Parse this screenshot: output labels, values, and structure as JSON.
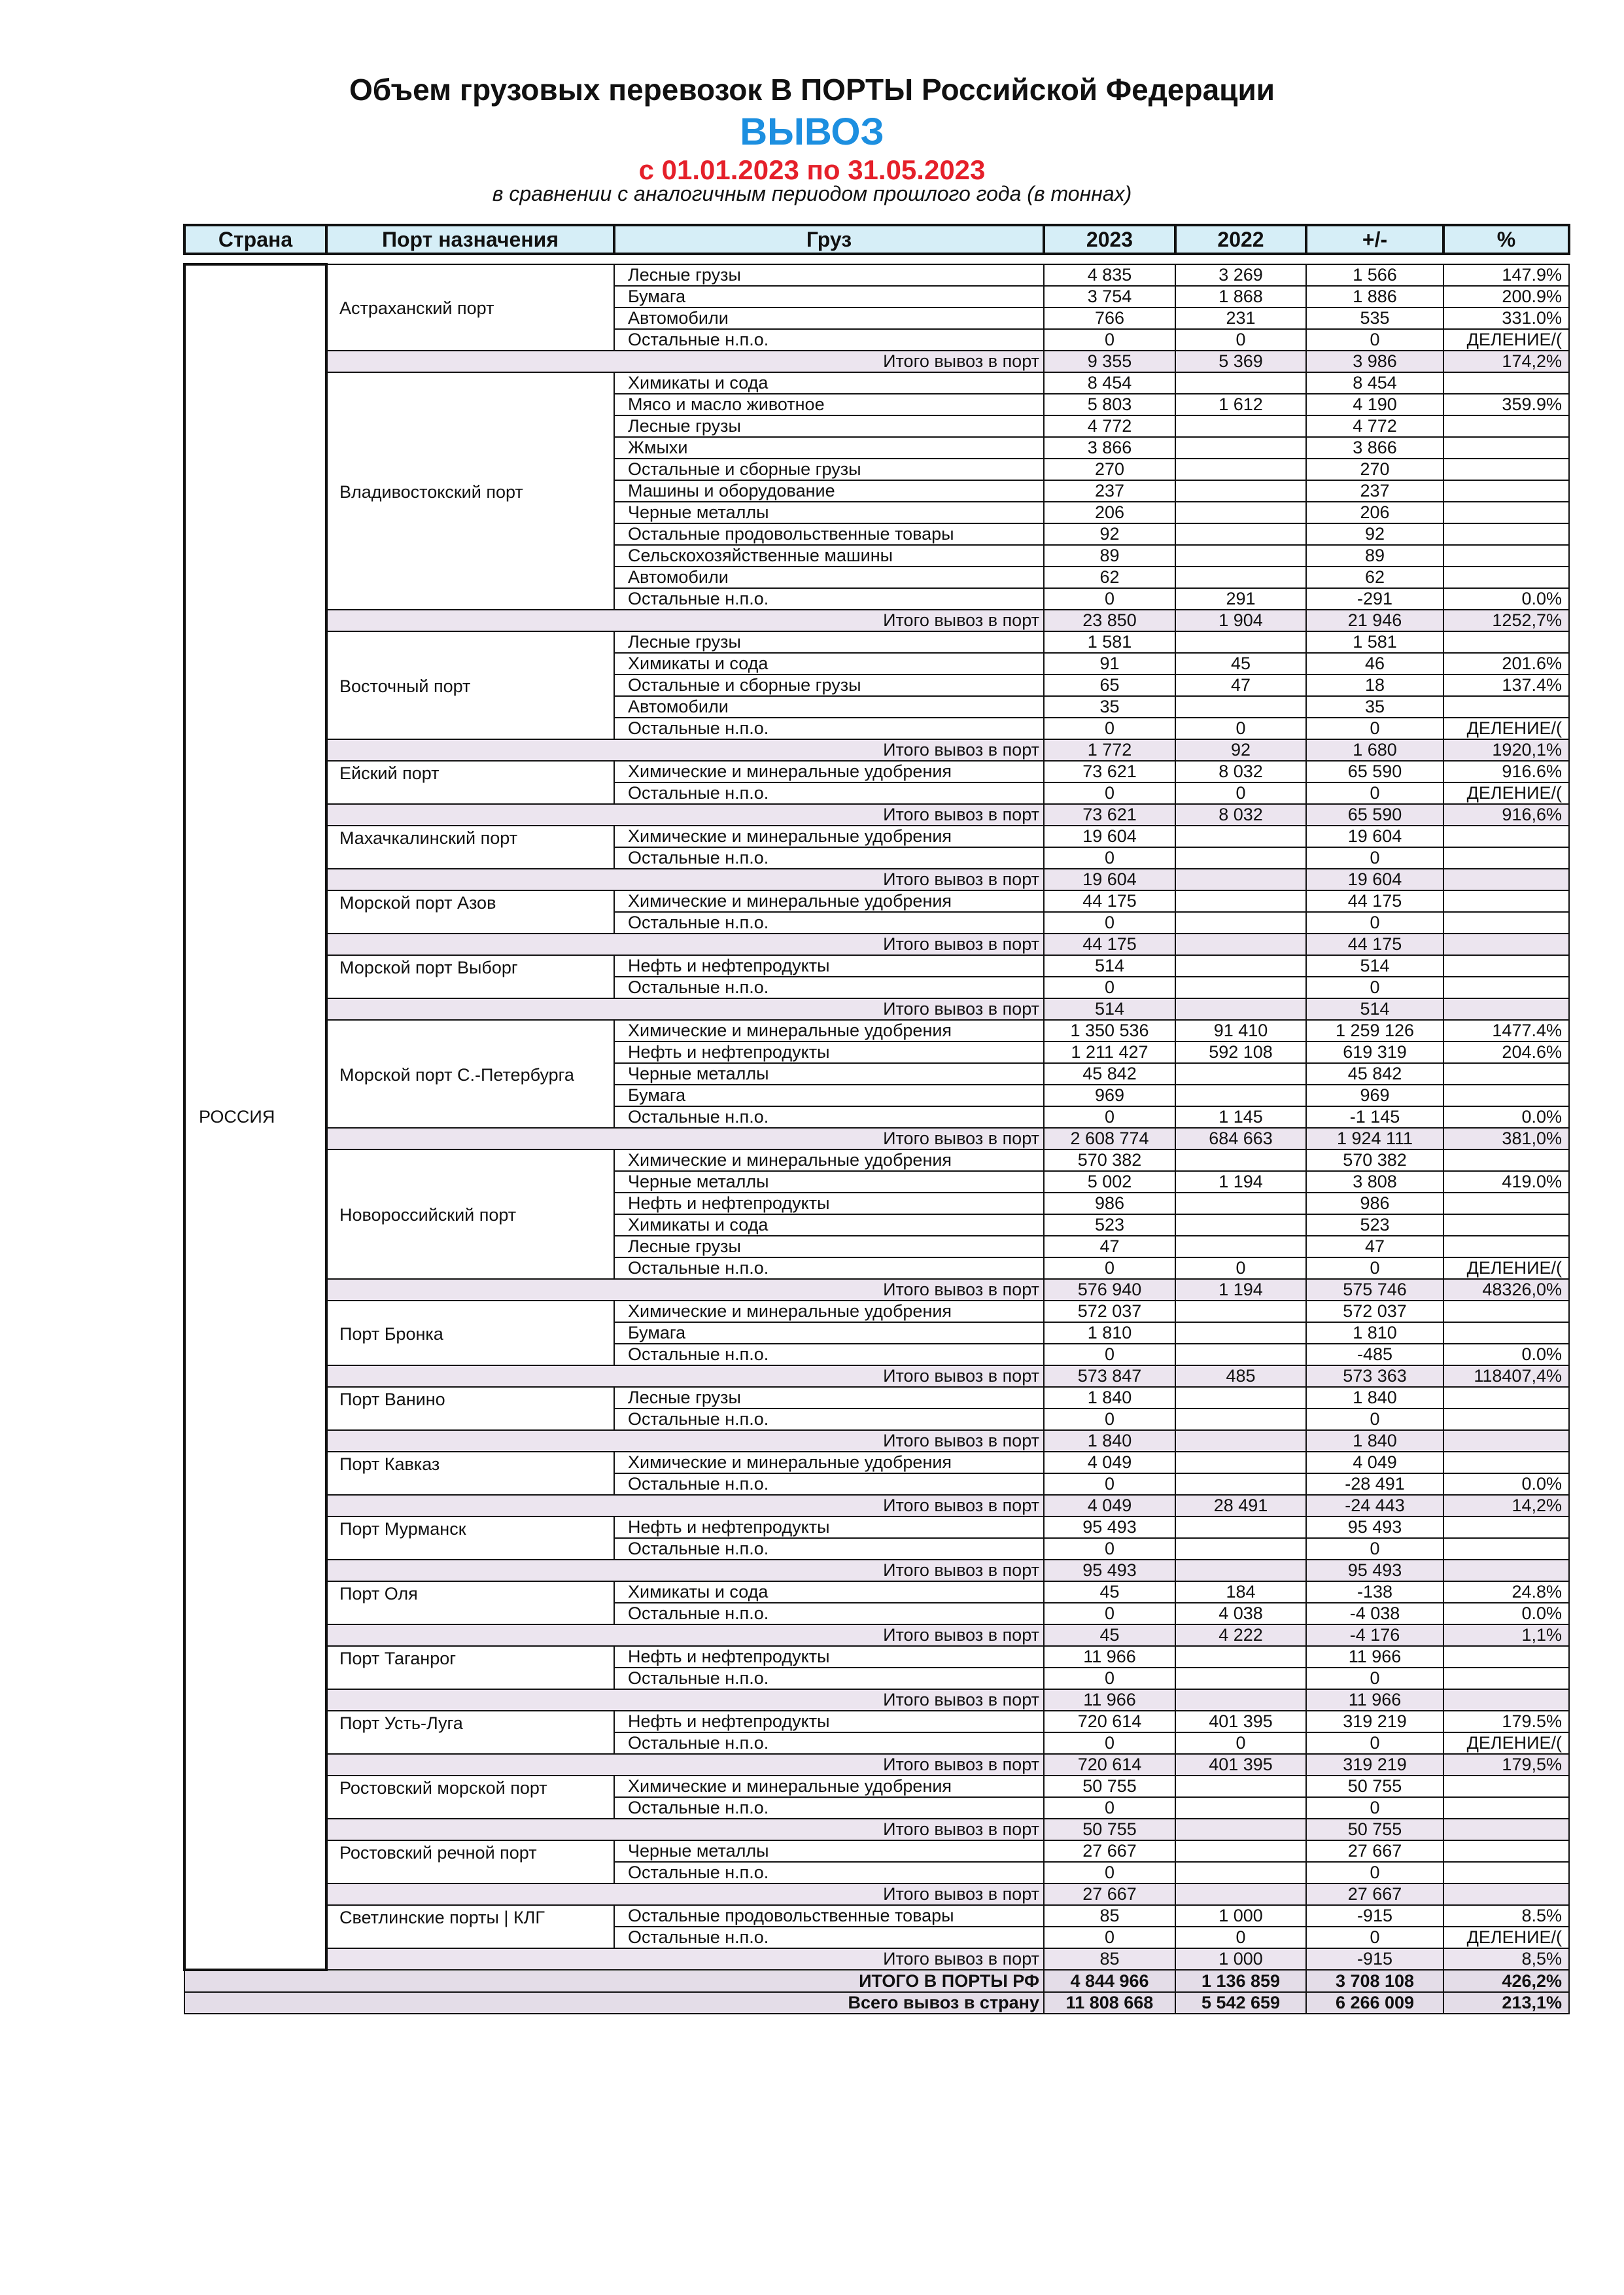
{
  "header": {
    "title": "Объем грузовых перевозок В ПОРТЫ Российской Федерации",
    "direction": "ВЫВОЗ",
    "period": "с 01.01.2023 по 31.05.2023",
    "note": "в сравнении с аналогичным периодом прошлого года (в тоннах)"
  },
  "colors": {
    "direction": "#1d8fe0",
    "period": "#e5202a",
    "header_bg": "#d6eef7",
    "total_bg": "#ece5ef"
  },
  "columns": [
    "Страна",
    "Порт назначения",
    "Груз",
    "2023",
    "2022",
    "+/-",
    "%"
  ],
  "country": "РОССИЯ",
  "total_label": "Итого вывоз в порт",
  "ports": [
    {
      "name": "Астраханский порт",
      "rows": [
        [
          "Лесные грузы",
          "4 835",
          "3 269",
          "1 566",
          "147.9%"
        ],
        [
          "Бумага",
          "3 754",
          "1 868",
          "1 886",
          "200.9%"
        ],
        [
          "Автомобили",
          "766",
          "231",
          "535",
          "331.0%"
        ],
        [
          "Остальные н.п.о.",
          "0",
          "0",
          "0",
          "ДЕЛЕНИЕ/("
        ]
      ],
      "total": [
        "9 355",
        "5 369",
        "3 986",
        "174,2%"
      ]
    },
    {
      "name": "Владивостокский порт",
      "rows": [
        [
          "Химикаты и сода",
          "8 454",
          "",
          "8 454",
          ""
        ],
        [
          "Мясо и масло животное",
          "5 803",
          "1 612",
          "4 190",
          "359.9%"
        ],
        [
          "Лесные грузы",
          "4 772",
          "",
          "4 772",
          ""
        ],
        [
          "Жмыхи",
          "3 866",
          "",
          "3 866",
          ""
        ],
        [
          "Остальные и сборные грузы",
          "270",
          "",
          "270",
          ""
        ],
        [
          "Машины и оборудование",
          "237",
          "",
          "237",
          ""
        ],
        [
          "Черные металлы",
          "206",
          "",
          "206",
          ""
        ],
        [
          "Остальные продовольственные товары",
          "92",
          "",
          "92",
          ""
        ],
        [
          "Сельскохозяйственные машины",
          "89",
          "",
          "89",
          ""
        ],
        [
          "Автомобили",
          "62",
          "",
          "62",
          ""
        ],
        [
          "Остальные н.п.о.",
          "0",
          "291",
          "-291",
          "0.0%"
        ]
      ],
      "total": [
        "23 850",
        "1 904",
        "21 946",
        "1252,7%"
      ]
    },
    {
      "name": "Восточный порт",
      "rows": [
        [
          "Лесные грузы",
          "1 581",
          "",
          "1 581",
          ""
        ],
        [
          "Химикаты и сода",
          "91",
          "45",
          "46",
          "201.6%"
        ],
        [
          "Остальные и сборные грузы",
          "65",
          "47",
          "18",
          "137.4%"
        ],
        [
          "Автомобили",
          "35",
          "",
          "35",
          ""
        ],
        [
          "Остальные н.п.о.",
          "0",
          "0",
          "0",
          "ДЕЛЕНИЕ/("
        ]
      ],
      "total": [
        "1 772",
        "92",
        "1 680",
        "1920,1%"
      ]
    },
    {
      "name": "Ейский порт",
      "rows": [
        [
          "Химические и минеральные удобрения",
          "73 621",
          "8 032",
          "65 590",
          "916.6%"
        ],
        [
          "Остальные н.п.о.",
          "0",
          "0",
          "0",
          "ДЕЛЕНИЕ/("
        ]
      ],
      "total": [
        "73 621",
        "8 032",
        "65 590",
        "916,6%"
      ]
    },
    {
      "name": "Махачкалинский порт",
      "rows": [
        [
          "Химические и минеральные удобрения",
          "19 604",
          "",
          "19 604",
          ""
        ],
        [
          "Остальные н.п.о.",
          "0",
          "",
          "0",
          ""
        ]
      ],
      "total": [
        "19 604",
        "",
        "19 604",
        ""
      ]
    },
    {
      "name": "Морской порт Азов",
      "rows": [
        [
          "Химические и минеральные удобрения",
          "44 175",
          "",
          "44 175",
          ""
        ],
        [
          "Остальные н.п.о.",
          "0",
          "",
          "0",
          ""
        ]
      ],
      "total": [
        "44 175",
        "",
        "44 175",
        ""
      ]
    },
    {
      "name": "Морской порт Выборг",
      "rows": [
        [
          "Нефть и нефтепродукты",
          "514",
          "",
          "514",
          ""
        ],
        [
          "Остальные н.п.о.",
          "0",
          "",
          "0",
          ""
        ]
      ],
      "total": [
        "514",
        "",
        "514",
        ""
      ]
    },
    {
      "name": "Морской порт С.-Петербурга",
      "rows": [
        [
          "Химические и минеральные удобрения",
          "1 350 536",
          "91 410",
          "1 259 126",
          "1477.4%"
        ],
        [
          "Нефть и нефтепродукты",
          "1 211 427",
          "592 108",
          "619 319",
          "204.6%"
        ],
        [
          "Черные металлы",
          "45 842",
          "",
          "45 842",
          ""
        ],
        [
          "Бумага",
          "969",
          "",
          "969",
          ""
        ],
        [
          "Остальные н.п.о.",
          "0",
          "1 145",
          "-1 145",
          "0.0%"
        ]
      ],
      "total": [
        "2 608 774",
        "684 663",
        "1 924 111",
        "381,0%"
      ]
    },
    {
      "name": "Новороссийский порт",
      "rows": [
        [
          "Химические и минеральные удобрения",
          "570 382",
          "",
          "570 382",
          ""
        ],
        [
          "Черные металлы",
          "5 002",
          "1 194",
          "3 808",
          "419.0%"
        ],
        [
          "Нефть и нефтепродукты",
          "986",
          "",
          "986",
          ""
        ],
        [
          "Химикаты и сода",
          "523",
          "",
          "523",
          ""
        ],
        [
          "Лесные грузы",
          "47",
          "",
          "47",
          ""
        ],
        [
          "Остальные н.п.о.",
          "0",
          "0",
          "0",
          "ДЕЛЕНИЕ/("
        ]
      ],
      "total": [
        "576 940",
        "1 194",
        "575 746",
        "48326,0%"
      ]
    },
    {
      "name": "Порт Бронка",
      "rows": [
        [
          "Химические и минеральные удобрения",
          "572 037",
          "",
          "572 037",
          ""
        ],
        [
          "Бумага",
          "1 810",
          "",
          "1 810",
          ""
        ],
        [
          "Остальные н.п.о.",
          "0",
          "",
          "-485",
          "0.0%"
        ]
      ],
      "total": [
        "573 847",
        "485",
        "573 363",
        "118407,4%"
      ]
    },
    {
      "name": "Порт Ванино",
      "rows": [
        [
          "Лесные грузы",
          "1 840",
          "",
          "1 840",
          ""
        ],
        [
          "Остальные н.п.о.",
          "0",
          "",
          "0",
          ""
        ]
      ],
      "total": [
        "1 840",
        "",
        "1 840",
        ""
      ]
    },
    {
      "name": "Порт Кавказ",
      "rows": [
        [
          "Химические и минеральные удобрения",
          "4 049",
          "",
          "4 049",
          ""
        ],
        [
          "Остальные н.п.о.",
          "0",
          "",
          "-28 491",
          "0.0%"
        ]
      ],
      "total": [
        "4 049",
        "28 491",
        "-24 443",
        "14,2%"
      ]
    },
    {
      "name": "Порт Мурманск",
      "rows": [
        [
          "Нефть и нефтепродукты",
          "95 493",
          "",
          "95 493",
          ""
        ],
        [
          "Остальные н.п.о.",
          "0",
          "",
          "0",
          ""
        ]
      ],
      "total": [
        "95 493",
        "",
        "95 493",
        ""
      ]
    },
    {
      "name": "Порт Оля",
      "rows": [
        [
          "Химикаты и сода",
          "45",
          "184",
          "-138",
          "24.8%"
        ],
        [
          "Остальные н.п.о.",
          "0",
          "4 038",
          "-4 038",
          "0.0%"
        ]
      ],
      "total": [
        "45",
        "4 222",
        "-4 176",
        "1,1%"
      ]
    },
    {
      "name": "Порт Таганрог",
      "rows": [
        [
          "Нефть и нефтепродукты",
          "11 966",
          "",
          "11 966",
          ""
        ],
        [
          "Остальные н.п.о.",
          "0",
          "",
          "0",
          ""
        ]
      ],
      "total": [
        "11 966",
        "",
        "11 966",
        ""
      ]
    },
    {
      "name": "Порт Усть-Луга",
      "rows": [
        [
          "Нефть и нефтепродукты",
          "720 614",
          "401 395",
          "319 219",
          "179.5%"
        ],
        [
          "Остальные н.п.о.",
          "0",
          "0",
          "0",
          "ДЕЛЕНИЕ/("
        ]
      ],
      "total": [
        "720 614",
        "401 395",
        "319 219",
        "179,5%"
      ]
    },
    {
      "name": "Ростовский морской порт",
      "rows": [
        [
          "Химические и минеральные удобрения",
          "50 755",
          "",
          "50 755",
          ""
        ],
        [
          "Остальные н.п.о.",
          "0",
          "",
          "0",
          ""
        ]
      ],
      "total": [
        "50 755",
        "",
        "50 755",
        ""
      ]
    },
    {
      "name": "Ростовский речной порт",
      "rows": [
        [
          "Черные металлы",
          "27 667",
          "",
          "27 667",
          ""
        ],
        [
          "Остальные н.п.о.",
          "0",
          "",
          "0",
          ""
        ]
      ],
      "total": [
        "27 667",
        "",
        "27 667",
        ""
      ]
    },
    {
      "name": "Светлинские порты | КЛГ",
      "rows": [
        [
          "Остальные продовольственные товары",
          "85",
          "1 000",
          "-915",
          "8.5%"
        ],
        [
          "Остальные н.п.о.",
          "0",
          "0",
          "0",
          "ДЕЛЕНИЕ/("
        ]
      ],
      "total": [
        "85",
        "1 000",
        "-915",
        "8,5%"
      ]
    }
  ],
  "grand_totals": [
    {
      "label": "ИТОГО В ПОРТЫ РФ",
      "values": [
        "4 844 966",
        "1 136 859",
        "3 708 108",
        "426,2%"
      ]
    },
    {
      "label": "Всего вывоз в страну",
      "values": [
        "11 808 668",
        "5 542 659",
        "6 266 009",
        "213,1%"
      ]
    }
  ]
}
